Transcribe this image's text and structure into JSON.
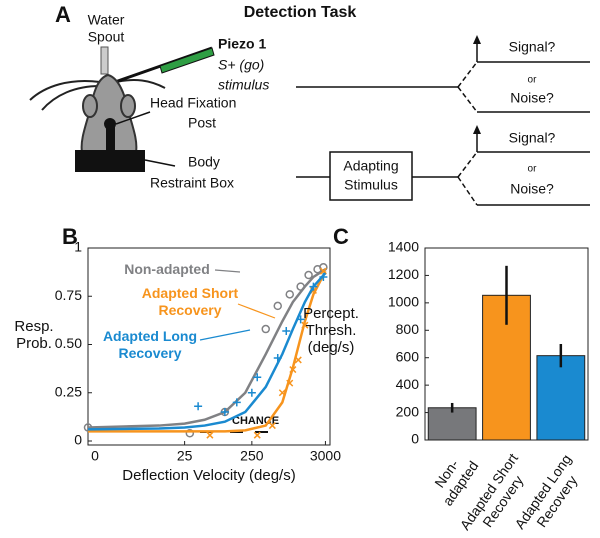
{
  "panel_labels": [
    "A",
    "B",
    "C"
  ],
  "diagram": {
    "title": "Detection Task",
    "water_spout": [
      "Water",
      "Spout"
    ],
    "piezo": {
      "name": "Piezo 1",
      "stimulus": [
        "S+ (go)",
        "stimulus"
      ]
    },
    "head_post": [
      "Head Fixation",
      "Post"
    ],
    "restraint_box": [
      "Body",
      "Restraint Box"
    ],
    "adapting_stimulus": [
      "Adapting",
      "Stimulus"
    ],
    "branches": [
      {
        "signal": "Signal?",
        "or": "or",
        "noise": "Noise?"
      },
      {
        "signal": "Signal?",
        "or": "or",
        "noise": "Noise?"
      }
    ]
  },
  "chart_data": [
    {
      "type": "line",
      "xlabel": "Deflection Velocity (deg/s)",
      "ylabel": "Resp. Prob.",
      "xscale": "log",
      "xlim": [
        0,
        3500
      ],
      "xticks": [
        0,
        25,
        250,
        3000
      ],
      "ylim": [
        0,
        1
      ],
      "yticks": [
        0,
        {
          "value": 0.25,
          "label": "0.25"
        },
        {
          "value": 0.5,
          "label": "0.50"
        },
        0.75,
        1
      ],
      "annotation": "CHANCE",
      "fit_x": [
        0,
        10,
        25,
        50,
        100,
        200,
        400,
        700,
        1000,
        1500,
        2000,
        3000
      ],
      "series": [
        {
          "name": "Non-adapted",
          "color": "#808184",
          "marker": "circle",
          "x": [
            0,
            30,
            100,
            400,
            600,
            900,
            1300,
            1700,
            2300,
            2800
          ],
          "values": [
            0.07,
            0.04,
            0.15,
            0.58,
            0.7,
            0.76,
            0.8,
            0.86,
            0.89,
            0.9
          ],
          "fit_values": [
            0.07,
            0.08,
            0.09,
            0.11,
            0.15,
            0.25,
            0.45,
            0.62,
            0.72,
            0.8,
            0.85,
            0.89
          ]
        },
        {
          "name": "Adapted Short Recovery",
          "color": "#f7941d",
          "marker": "x",
          "x": [
            60,
            300,
            500,
            700,
            900,
            1000,
            1200,
            1500,
            2000,
            2800
          ],
          "values": [
            0.03,
            0.03,
            0.08,
            0.25,
            0.3,
            0.37,
            0.42,
            0.6,
            0.78,
            0.88
          ],
          "fit_values": [
            0.05,
            0.05,
            0.05,
            0.05,
            0.05,
            0.055,
            0.08,
            0.2,
            0.38,
            0.62,
            0.76,
            0.88
          ]
        },
        {
          "name": "Adapted Long Recovery",
          "color": "#1a8ad0",
          "marker": "plus",
          "x": [
            40,
            100,
            150,
            250,
            300,
            600,
            800,
            1300,
            2000,
            2800
          ],
          "values": [
            0.18,
            0.15,
            0.2,
            0.25,
            0.33,
            0.43,
            0.57,
            0.63,
            0.8,
            0.85
          ],
          "fit_values": [
            0.06,
            0.065,
            0.07,
            0.08,
            0.1,
            0.15,
            0.28,
            0.45,
            0.58,
            0.72,
            0.8,
            0.87
          ]
        }
      ]
    },
    {
      "type": "bar",
      "ylabel": "Percept. Thresh. (deg/s)",
      "categories": [
        "Non-adapted",
        "Adapted Short Recovery",
        "Adapted Long Recovery"
      ],
      "values": [
        235,
        1055,
        615
      ],
      "errors": [
        35,
        215,
        85
      ],
      "colors": [
        "#77787b",
        "#f7941d",
        "#1a8ad0"
      ],
      "ylim": [
        0,
        1400
      ],
      "yticks": [
        0,
        200,
        400,
        600,
        800,
        1000,
        1200,
        1400
      ]
    }
  ]
}
